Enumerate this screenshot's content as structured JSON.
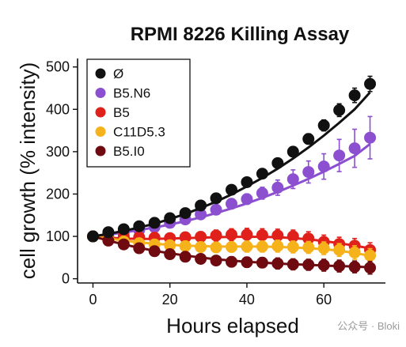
{
  "watermark": {
    "text": "公众号 · Bloki"
  },
  "chart_data": {
    "type": "line",
    "title": "RPMI 8226 Killing Assay",
    "xlabel": "Hours elapsed",
    "ylabel": "cell growth (% intensity)",
    "xlim": [
      -4,
      76
    ],
    "ylim": [
      -10,
      520
    ],
    "xticks": [
      0,
      20,
      40,
      60
    ],
    "yticks": [
      0,
      100,
      200,
      300,
      400,
      500
    ],
    "legend_position": "top-left",
    "grid": false,
    "x": [
      0,
      4,
      8,
      12,
      16,
      20,
      24,
      28,
      32,
      36,
      40,
      44,
      48,
      52,
      56,
      60,
      64,
      68,
      72
    ],
    "series": [
      {
        "name": "Ø",
        "color": "#111111",
        "values": [
          100,
          110,
          117,
          124,
          132,
          143,
          155,
          173,
          190,
          210,
          228,
          248,
          273,
          300,
          330,
          362,
          398,
          433,
          460
        ],
        "errors": [
          3,
          4,
          4,
          5,
          5,
          6,
          6,
          7,
          7,
          8,
          8,
          9,
          10,
          11,
          12,
          13,
          15,
          17,
          18
        ],
        "fit": [
          100,
          106,
          113,
          121,
          130,
          141,
          153,
          167,
          182,
          199,
          218,
          238,
          260,
          284,
          310,
          338,
          368,
          400,
          440
        ]
      },
      {
        "name": "B5.N6",
        "color": "#8b4fd0",
        "values": [
          100,
          106,
          110,
          115,
          122,
          132,
          140,
          152,
          163,
          177,
          188,
          202,
          215,
          235,
          252,
          265,
          291,
          308,
          333
        ],
        "errors": [
          3,
          4,
          4,
          5,
          6,
          6,
          7,
          8,
          9,
          10,
          12,
          14,
          18,
          22,
          26,
          30,
          38,
          45,
          50
        ],
        "fit": [
          100,
          104,
          109,
          115,
          121,
          128,
          136,
          145,
          155,
          166,
          178,
          191,
          205,
          220,
          236,
          253,
          271,
          290,
          318
        ]
      },
      {
        "name": "B5",
        "color": "#e0201b",
        "values": [
          100,
          97,
          100,
          98,
          97,
          96,
          98,
          99,
          102,
          104,
          104,
          103,
          102,
          100,
          95,
          87,
          82,
          78,
          68
        ],
        "errors": [
          4,
          8,
          9,
          10,
          10,
          11,
          11,
          12,
          13,
          14,
          15,
          15,
          15,
          15,
          16,
          16,
          16,
          17,
          17
        ],
        "fit": [
          100,
          97,
          95,
          94,
          94,
          95,
          96,
          97,
          98,
          99,
          99,
          99,
          98,
          96,
          93,
          89,
          84,
          78,
          72
        ]
      },
      {
        "name": "C11D5.3",
        "color": "#f6b21a",
        "values": [
          100,
          93,
          88,
          84,
          81,
          79,
          77,
          75,
          74,
          75,
          76,
          76,
          77,
          75,
          74,
          72,
          68,
          62,
          55
        ],
        "errors": [
          3,
          6,
          8,
          9,
          10,
          10,
          11,
          11,
          12,
          12,
          13,
          13,
          14,
          14,
          14,
          15,
          15,
          16,
          16
        ],
        "fit": [
          100,
          95,
          90,
          86,
          83,
          80,
          78,
          77,
          76,
          76,
          76,
          76,
          75,
          74,
          72,
          70,
          66,
          61,
          54
        ]
      },
      {
        "name": "B5.I0",
        "color": "#6f0b10",
        "values": [
          100,
          90,
          81,
          72,
          65,
          58,
          52,
          47,
          43,
          40,
          39,
          38,
          36,
          34,
          33,
          32,
          30,
          28,
          26
        ],
        "errors": [
          3,
          6,
          8,
          9,
          10,
          10,
          10,
          11,
          11,
          12,
          12,
          12,
          13,
          13,
          13,
          14,
          14,
          14,
          15
        ],
        "fit": [
          100,
          90,
          81,
          73,
          66,
          60,
          55,
          50,
          46,
          43,
          40,
          38,
          36,
          34,
          33,
          31,
          30,
          29,
          27
        ]
      }
    ]
  }
}
